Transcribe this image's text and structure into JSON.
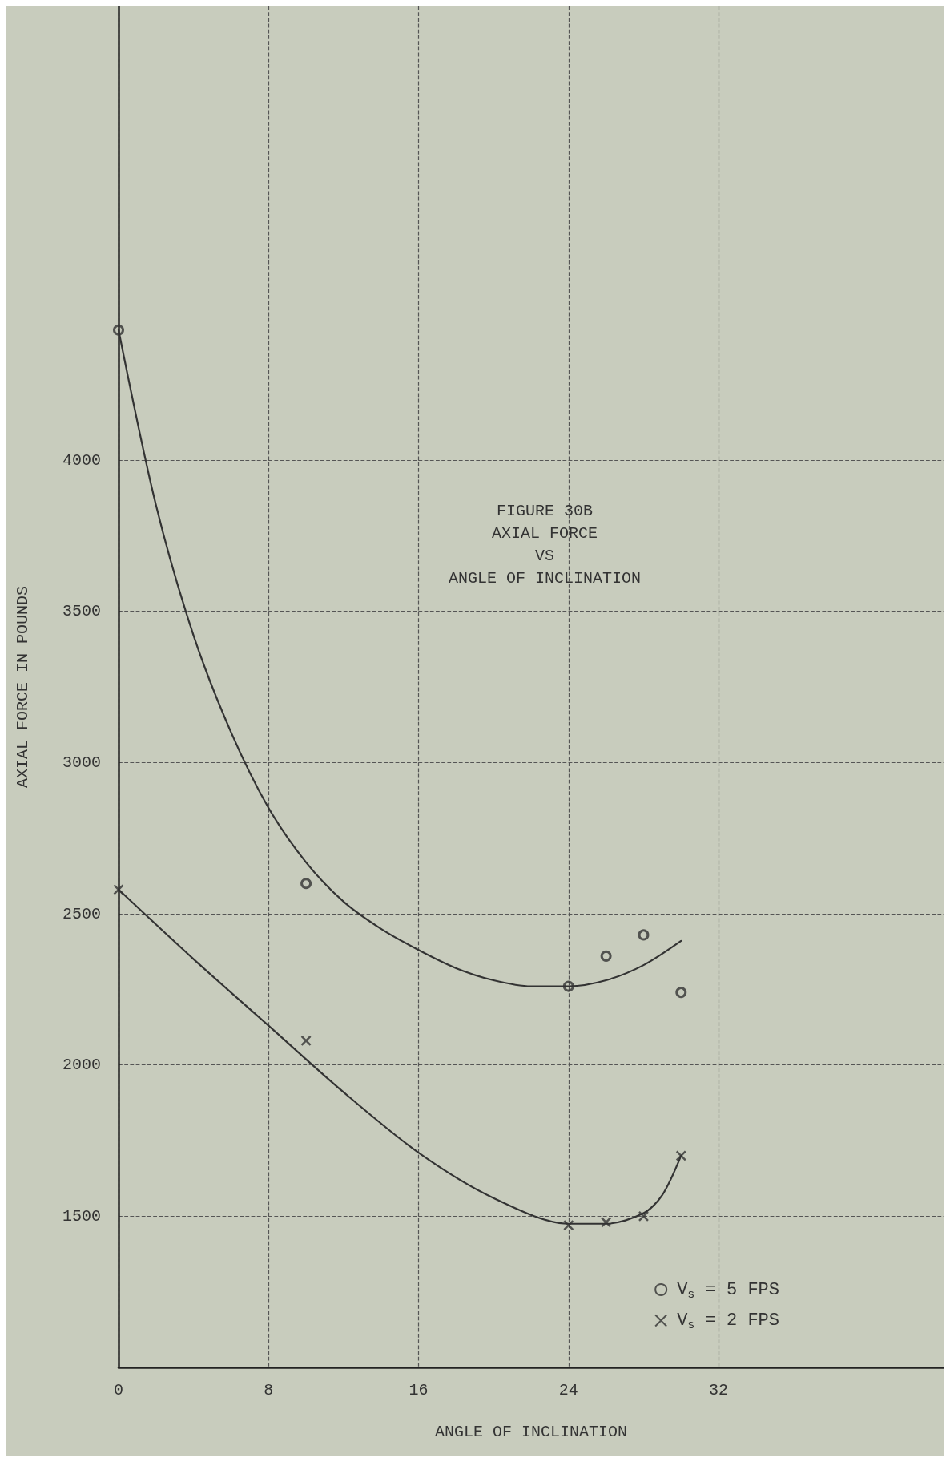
{
  "chart_data": {
    "type": "scatter",
    "title": "FIGURE 30B\nAXIAL FORCE\nVS\nANGLE OF INCLINATION",
    "xlabel": "ANGLE OF INCLINATION",
    "ylabel": "AXIAL FORCE IN POUNDS",
    "xlim": [
      0,
      44
    ],
    "xticks": [
      0,
      8,
      16,
      24,
      32
    ],
    "ylim": [
      1000,
      5500
    ],
    "yticks": [
      1500,
      2000,
      2500,
      3000,
      3500,
      4000
    ],
    "grid": true,
    "legend": "bottom right",
    "series": [
      {
        "name": "V$_{s}$ = 5 FPS",
        "color": "#333333",
        "marker": "circle",
        "x": [
          0,
          10,
          24,
          26,
          28,
          30
        ],
        "values": [
          4430,
          2600,
          2260,
          2360,
          2430,
          2240
        ]
      },
      {
        "name": "V$_{s}$ = 2 FPS",
        "color": "#333333",
        "marker": "cross",
        "x": [
          0,
          10,
          24,
          26,
          28,
          30
        ],
        "values": [
          2580,
          2080,
          1470,
          1480,
          1500,
          1700
        ]
      },
      {
        "type": "line",
        "color": "#333333",
        "marker": "none",
        "x": [
          0,
          2,
          4,
          6,
          8,
          10,
          12,
          14,
          16,
          18,
          20,
          22,
          24,
          26,
          28,
          30
        ],
        "values": [
          4430,
          3850,
          3420,
          3100,
          2850,
          2670,
          2540,
          2450,
          2380,
          2320,
          2280,
          2260,
          2260,
          2280,
          2330,
          2410
        ]
      },
      {
        "type": "line",
        "color": "#333333",
        "marker": "none",
        "x": [
          0,
          4,
          8,
          12,
          16,
          20,
          24,
          26,
          28,
          29,
          30
        ],
        "values": [
          2580,
          2350,
          2130,
          1910,
          1710,
          1560,
          1475,
          1475,
          1510,
          1570,
          1700
        ]
      }
    ]
  }
}
